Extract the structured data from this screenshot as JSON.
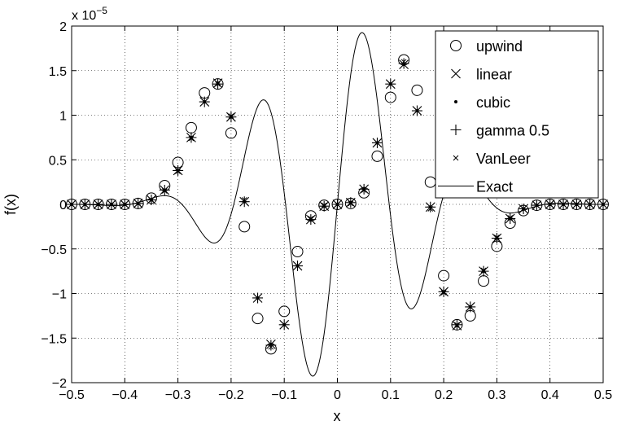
{
  "chart_data": {
    "type": "scatter",
    "xlabel": "x",
    "ylabel": "f(x)",
    "xlim": [
      -0.5,
      0.5
    ],
    "ylim": [
      -2,
      2
    ],
    "y_exponent_label": "x 10",
    "y_exponent_power": "−5",
    "x_ticks": [
      -0.5,
      -0.4,
      -0.3,
      -0.2,
      -0.1,
      0,
      0.1,
      0.2,
      0.3,
      0.4,
      0.5
    ],
    "x_tick_labels": [
      "−0.5",
      "−0.4",
      "−0.3",
      "−0.2",
      "−0.1",
      "0",
      "0.1",
      "0.2",
      "0.3",
      "0.4",
      "0.5"
    ],
    "y_ticks": [
      -2,
      -1.5,
      -1,
      -0.5,
      0,
      0.5,
      1,
      1.5,
      2
    ],
    "y_tick_labels": [
      "−2",
      "−1.5",
      "−1",
      "−0.5",
      "0",
      "0.5",
      "1",
      "1.5",
      "2"
    ],
    "grid": true,
    "legend": "top-right",
    "x": [
      -0.5,
      -0.475,
      -0.45,
      -0.425,
      -0.4,
      -0.375,
      -0.35,
      -0.325,
      -0.3,
      -0.275,
      -0.25,
      -0.225,
      -0.2,
      -0.175,
      -0.15,
      -0.125,
      -0.1,
      -0.075,
      -0.05,
      -0.025,
      0,
      0.025,
      0.05,
      0.075,
      0.1,
      0.125,
      0.15,
      0.175,
      0.2,
      0.225,
      0.25,
      0.275,
      0.3,
      0.325,
      0.35,
      0.375,
      0.4,
      0.425,
      0.45,
      0.475,
      0.5
    ],
    "series": [
      {
        "name": "upwind",
        "marker": "circle",
        "values": [
          0,
          0,
          0,
          0,
          0,
          0.01,
          0.07,
          0.21,
          0.47,
          0.86,
          1.25,
          1.35,
          0.8,
          -0.25,
          -1.28,
          -1.62,
          -1.2,
          -0.53,
          -0.13,
          -0.01,
          0,
          0.01,
          0.13,
          0.54,
          1.2,
          1.62,
          1.28,
          0.25,
          -0.8,
          -1.35,
          -1.25,
          -0.86,
          -0.47,
          -0.21,
          -0.07,
          -0.01,
          0,
          0,
          0,
          0,
          0
        ]
      },
      {
        "name": "linear",
        "marker": "x",
        "values": [
          0,
          0,
          0,
          0,
          0,
          0.01,
          0.05,
          0.16,
          0.38,
          0.75,
          1.15,
          1.36,
          0.98,
          0.03,
          -1.05,
          -1.57,
          -1.35,
          -0.69,
          -0.17,
          -0.02,
          0,
          0.02,
          0.17,
          0.69,
          1.35,
          1.57,
          1.05,
          -0.03,
          -0.98,
          -1.36,
          -1.15,
          -0.75,
          -0.38,
          -0.16,
          -0.05,
          -0.01,
          0,
          0,
          0,
          0,
          0
        ]
      },
      {
        "name": "cubic",
        "marker": "dot",
        "values": [
          0,
          0,
          0,
          0,
          0,
          0.01,
          0.05,
          0.16,
          0.38,
          0.75,
          1.15,
          1.36,
          0.98,
          0.03,
          -1.05,
          -1.57,
          -1.35,
          -0.69,
          -0.17,
          -0.02,
          0,
          0.02,
          0.17,
          0.69,
          1.35,
          1.57,
          1.05,
          -0.03,
          -0.98,
          -1.36,
          -1.15,
          -0.75,
          -0.38,
          -0.16,
          -0.05,
          -0.01,
          0,
          0,
          0,
          0,
          0
        ]
      },
      {
        "name": "gamma 0.5",
        "marker": "plus",
        "values": [
          0,
          0,
          0,
          0,
          0,
          0.01,
          0.05,
          0.16,
          0.38,
          0.75,
          1.15,
          1.35,
          0.98,
          0.03,
          -1.05,
          -1.58,
          -1.35,
          -0.69,
          -0.17,
          -0.02,
          0,
          0.02,
          0.17,
          0.69,
          1.35,
          1.58,
          1.05,
          -0.03,
          -0.98,
          -1.35,
          -1.15,
          -0.75,
          -0.38,
          -0.16,
          -0.05,
          -0.01,
          0,
          0,
          0,
          0,
          0
        ]
      },
      {
        "name": "VanLeer",
        "marker": "small-x",
        "values": [
          0,
          0,
          0,
          0,
          0,
          0.01,
          0.05,
          0.15,
          0.37,
          0.74,
          1.15,
          1.35,
          0.99,
          0.05,
          -1.05,
          -1.6,
          -1.35,
          -0.69,
          -0.16,
          -0.01,
          0,
          0.01,
          0.16,
          0.69,
          1.35,
          1.6,
          1.05,
          -0.05,
          -0.99,
          -1.35,
          -1.15,
          -0.74,
          -0.37,
          -0.15,
          -0.05,
          -0.01,
          0,
          0,
          0,
          0,
          0
        ]
      },
      {
        "name": "Exact",
        "marker": "line",
        "curve": "analytic"
      }
    ]
  }
}
